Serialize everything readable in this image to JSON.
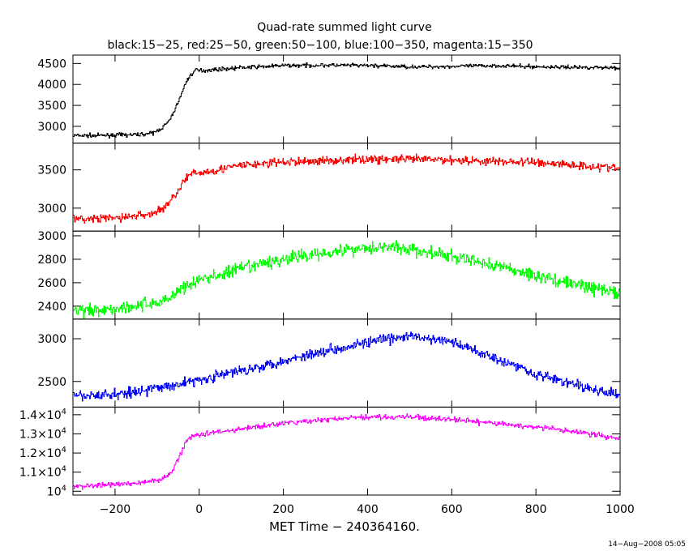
{
  "chart_data": {
    "type": "line",
    "title": "Quad-rate summed light curve",
    "subtitle": "black:15−25, red:25−50, green:50−100, blue:100−350, magenta:15−350",
    "xlabel": "MET Time − 240364160.",
    "timestamp": "14−Aug−2008 05:05",
    "xlim": [
      -300,
      1000
    ],
    "xticks": [
      -200,
      0,
      200,
      400,
      600,
      800,
      1000
    ],
    "xtick_labels": [
      "−200",
      "0",
      "200",
      "400",
      "600",
      "800",
      "1000"
    ],
    "grid": false,
    "panels": [
      {
        "name": "black",
        "band": "15−25",
        "color": "#000000",
        "ylim": [
          2600,
          4700
        ],
        "yticks": [
          3000,
          3500,
          4000,
          4500
        ],
        "ytick_labels": [
          {
            "base": "3000"
          },
          {
            "base": "3500"
          },
          {
            "base": "4000"
          },
          {
            "base": "4500"
          }
        ],
        "noise": 45,
        "x": [
          -300,
          -250,
          -200,
          -150,
          -110,
          -90,
          -70,
          -50,
          -30,
          -10,
          0,
          100,
          200,
          300,
          400,
          500,
          600,
          700,
          800,
          900,
          1000
        ],
        "y": [
          2780,
          2780,
          2790,
          2800,
          2840,
          2950,
          3150,
          3600,
          4100,
          4350,
          4330,
          4400,
          4450,
          4460,
          4450,
          4420,
          4430,
          4450,
          4420,
          4410,
          4400
        ]
      },
      {
        "name": "red",
        "band": "25−50",
        "color": "#ff0000",
        "ylim": [
          2700,
          3850
        ],
        "yticks": [
          3000,
          3500
        ],
        "ytick_labels": [
          {
            "base": "3000"
          },
          {
            "base": "3500"
          }
        ],
        "noise": 55,
        "x": [
          -300,
          -250,
          -200,
          -150,
          -110,
          -90,
          -70,
          -50,
          -30,
          -10,
          0,
          100,
          200,
          300,
          400,
          500,
          600,
          700,
          800,
          900,
          1000
        ],
        "y": [
          2850,
          2860,
          2870,
          2900,
          2930,
          2990,
          3080,
          3250,
          3400,
          3460,
          3460,
          3560,
          3600,
          3620,
          3640,
          3640,
          3630,
          3610,
          3600,
          3560,
          3520
        ]
      },
      {
        "name": "green",
        "band": "50−100",
        "color": "#00ff00",
        "ylim": [
          2290,
          3040
        ],
        "yticks": [
          2400,
          2600,
          2800,
          3000
        ],
        "ytick_labels": [
          {
            "base": "2400"
          },
          {
            "base": "2600"
          },
          {
            "base": "2800"
          },
          {
            "base": "3000"
          }
        ],
        "noise": 55,
        "x": [
          -300,
          -200,
          -100,
          -70,
          -50,
          0,
          100,
          200,
          300,
          400,
          450,
          500,
          600,
          700,
          800,
          900,
          1000
        ],
        "y": [
          2360,
          2380,
          2430,
          2470,
          2540,
          2620,
          2720,
          2800,
          2860,
          2900,
          2910,
          2880,
          2820,
          2750,
          2660,
          2580,
          2510
        ]
      },
      {
        "name": "blue",
        "band": "100−350",
        "color": "#0000ff",
        "ylim": [
          2200,
          3230
        ],
        "yticks": [
          2500,
          3000
        ],
        "ytick_labels": [
          {
            "base": "2500"
          },
          {
            "base": "3000"
          }
        ],
        "noise": 60,
        "x": [
          -300,
          -200,
          -100,
          0,
          100,
          200,
          300,
          400,
          500,
          600,
          700,
          800,
          900,
          1000
        ],
        "y": [
          2320,
          2350,
          2420,
          2520,
          2630,
          2740,
          2860,
          2960,
          3030,
          2960,
          2780,
          2590,
          2450,
          2330
        ]
      },
      {
        "name": "magenta",
        "band": "15−350",
        "color": "#ff00ff",
        "ylim": [
          9800,
          14400
        ],
        "yticks": [
          10000,
          11000,
          12000,
          13000,
          14000
        ],
        "ytick_labels": [
          {
            "base": "10",
            "exp": "4"
          },
          {
            "base": "1.1×10",
            "exp": "4"
          },
          {
            "base": "1.2×10",
            "exp": "4"
          },
          {
            "base": "1.3×10",
            "exp": "4"
          },
          {
            "base": "1.4×10",
            "exp": "4"
          }
        ],
        "noise": 130,
        "x": [
          -300,
          -200,
          -120,
          -90,
          -70,
          -50,
          -30,
          -10,
          0,
          100,
          200,
          300,
          400,
          500,
          600,
          700,
          800,
          900,
          1000
        ],
        "y": [
          10250,
          10350,
          10500,
          10600,
          10900,
          11700,
          12700,
          12950,
          12980,
          13250,
          13550,
          13750,
          13880,
          13880,
          13750,
          13550,
          13350,
          13100,
          12750
        ]
      }
    ]
  }
}
